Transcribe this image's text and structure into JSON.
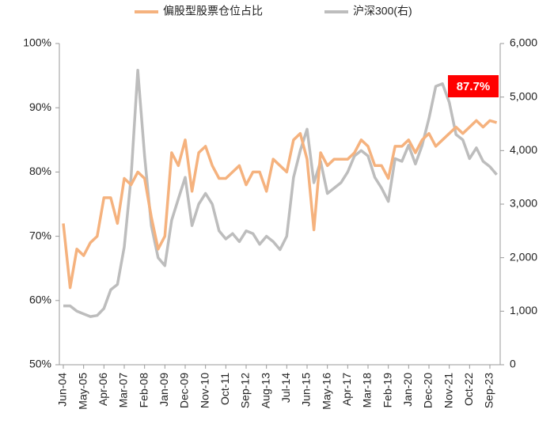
{
  "chart_data": {
    "type": "line",
    "categories": [
      "Jun-04",
      null,
      null,
      "May-05",
      null,
      null,
      "Apr-06",
      null,
      null,
      "Mar-07",
      null,
      null,
      "Feb-08",
      null,
      null,
      "Jan-09",
      null,
      null,
      "Dec-09",
      null,
      null,
      "Nov-10",
      null,
      null,
      "Oct-11",
      null,
      null,
      "Sep-12",
      null,
      null,
      "Aug-13",
      null,
      null,
      "Jul-14",
      null,
      null,
      "Jun-15",
      null,
      null,
      "May-16",
      null,
      null,
      "Apr-17",
      null,
      null,
      "Mar-18",
      null,
      null,
      "Feb-19",
      null,
      null,
      "Jan-20",
      null,
      null,
      "Dec-20",
      null,
      null,
      "Nov-21",
      null,
      null,
      "Oct-22",
      null,
      null,
      "Sep-23",
      null
    ],
    "series": [
      {
        "name": "偏股型股票仓位占比",
        "color": "#f5b27e",
        "values": [
          72,
          62,
          68,
          67,
          69,
          70,
          76,
          76,
          72,
          79,
          78,
          80,
          79,
          73,
          68,
          70,
          83,
          81,
          85,
          77,
          83,
          84,
          81,
          79,
          79,
          80,
          81,
          78,
          80,
          80,
          77,
          82,
          81,
          80,
          85,
          86,
          82,
          71,
          83,
          81,
          82,
          82,
          82,
          83,
          85,
          84,
          81,
          81,
          79,
          84,
          84,
          85,
          83,
          85,
          86,
          84,
          85,
          86,
          87,
          86,
          87,
          88,
          87,
          88,
          87.7
        ]
      },
      {
        "name": "沪深300(右)",
        "color": "#bdbdbd",
        "axis": "y2",
        "values": [
          1100,
          1100,
          1000,
          950,
          900,
          920,
          1050,
          1400,
          1500,
          2200,
          3500,
          5500,
          3900,
          2600,
          2000,
          1850,
          2700,
          3100,
          3500,
          2600,
          3000,
          3200,
          3000,
          2500,
          2350,
          2450,
          2300,
          2500,
          2450,
          2250,
          2400,
          2300,
          2150,
          2400,
          3500,
          4000,
          4400,
          3400,
          3800,
          3200,
          3300,
          3400,
          3600,
          3900,
          4000,
          3900,
          3500,
          3300,
          3050,
          3850,
          3800,
          4100,
          3750,
          4100,
          4600,
          5200,
          5250,
          4900,
          4300,
          4200,
          3850,
          4050,
          3800,
          3700,
          3550
        ]
      }
    ],
    "ylim": [
      50,
      100
    ],
    "yticks": [
      {
        "value": 50,
        "label": "50%"
      },
      {
        "value": 60,
        "label": "60%"
      },
      {
        "value": 70,
        "label": "70%"
      },
      {
        "value": 80,
        "label": "80%"
      },
      {
        "value": 90,
        "label": "90%"
      },
      {
        "value": 100,
        "label": "100%"
      }
    ],
    "y2lim": [
      0,
      6000
    ],
    "y2ticks": [
      0,
      {
        "value": 1000,
        "label": "1,000"
      },
      {
        "value": 2000,
        "label": "2,000"
      },
      {
        "value": 3000,
        "label": "3,000"
      },
      {
        "value": 4000,
        "label": "4,000"
      },
      {
        "value": 5000,
        "label": "5,000"
      },
      {
        "value": 6000,
        "label": "6,000"
      }
    ],
    "annotation": "87.7%",
    "grid": false,
    "legend": "top"
  }
}
